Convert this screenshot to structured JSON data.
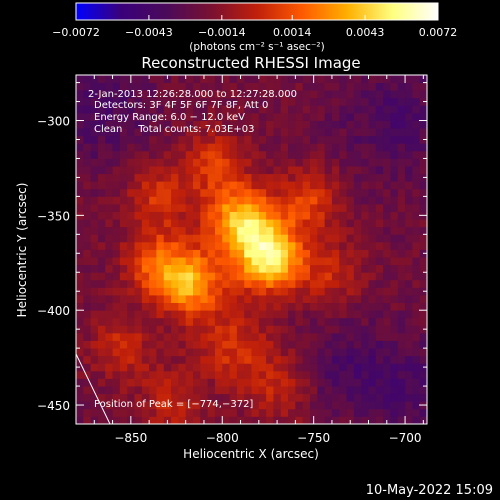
{
  "chart_data": {
    "type": "heatmap",
    "title": "Reconstructed RHESSI Image",
    "xlabel": "Heliocentric X (arcsec)",
    "ylabel": "Heliocentric Y (arcsec)",
    "xlim": [
      -880,
      -688
    ],
    "ylim": [
      -460,
      -276
    ],
    "x_ticks": [
      -850,
      -800,
      -750,
      -700
    ],
    "y_ticks": [
      -300,
      -350,
      -400,
      -450
    ],
    "x_tick_labels": [
      "−850",
      "−800",
      "−750",
      "−700"
    ],
    "y_tick_labels": [
      "−300",
      "−350",
      "−400",
      "−450"
    ],
    "colorbar": {
      "min": -0.0072,
      "max": 0.0072,
      "ticks": [
        -0.0072,
        -0.0043,
        -0.0014,
        0.0014,
        0.0043,
        0.0072
      ],
      "tick_labels": [
        "−0.0072",
        "−0.0043",
        "−0.0014",
        "0.0014",
        "0.0043",
        "0.0072"
      ],
      "unit_label": "(photons cm⁻² s⁻¹ asec⁻²)",
      "colormap": [
        "#0000ff",
        "#3a007a",
        "#4b0a5a",
        "#7a1030",
        "#c0200a",
        "#ff5a00",
        "#ffb000",
        "#ffff80",
        "#ffffff"
      ]
    },
    "annotations": [
      "2-Jan-2013 12:26:28.000 to 12:27:28.000",
      "Detectors: 3F 4F 5F 6F 7F 8F, Att 0",
      "Energy Range: 6.0 − 12.0 keV",
      "Clean     Total counts: 7.03E+03"
    ],
    "peak_label": "Position of Peak = [−774,−372]",
    "peak": [
      -774,
      -372
    ],
    "sources": [
      {
        "x": -774,
        "y": -372,
        "amp": 0.0072,
        "sigma": 13
      },
      {
        "x": -790,
        "y": -352,
        "amp": 0.0058,
        "sigma": 13
      },
      {
        "x": -818,
        "y": -385,
        "amp": 0.0056,
        "sigma": 13
      },
      {
        "x": -838,
        "y": -375,
        "amp": 0.0032,
        "sigma": 12
      },
      {
        "x": -835,
        "y": -340,
        "amp": 0.0026,
        "sigma": 13
      },
      {
        "x": -805,
        "y": -322,
        "amp": 0.0028,
        "sigma": 12
      },
      {
        "x": -752,
        "y": -342,
        "amp": 0.003,
        "sigma": 12
      },
      {
        "x": -740,
        "y": -380,
        "amp": 0.0022,
        "sigma": 12
      },
      {
        "x": -855,
        "y": -420,
        "amp": 0.0024,
        "sigma": 12
      },
      {
        "x": -795,
        "y": -418,
        "amp": 0.0026,
        "sigma": 14
      },
      {
        "x": -770,
        "y": -440,
        "amp": 0.002,
        "sigma": 14
      },
      {
        "x": -828,
        "y": -448,
        "amp": 0.0022,
        "sigma": 12
      },
      {
        "x": -735,
        "y": -430,
        "amp": -0.0014,
        "sigma": 16
      },
      {
        "x": -705,
        "y": -300,
        "amp": -0.0016,
        "sigma": 22
      },
      {
        "x": -865,
        "y": -295,
        "amp": -0.0016,
        "sigma": 20
      },
      {
        "x": -700,
        "y": -440,
        "amp": -0.0016,
        "sigma": 20
      }
    ]
  },
  "footer": {
    "timestamp": "10-May-2022 15:09"
  }
}
